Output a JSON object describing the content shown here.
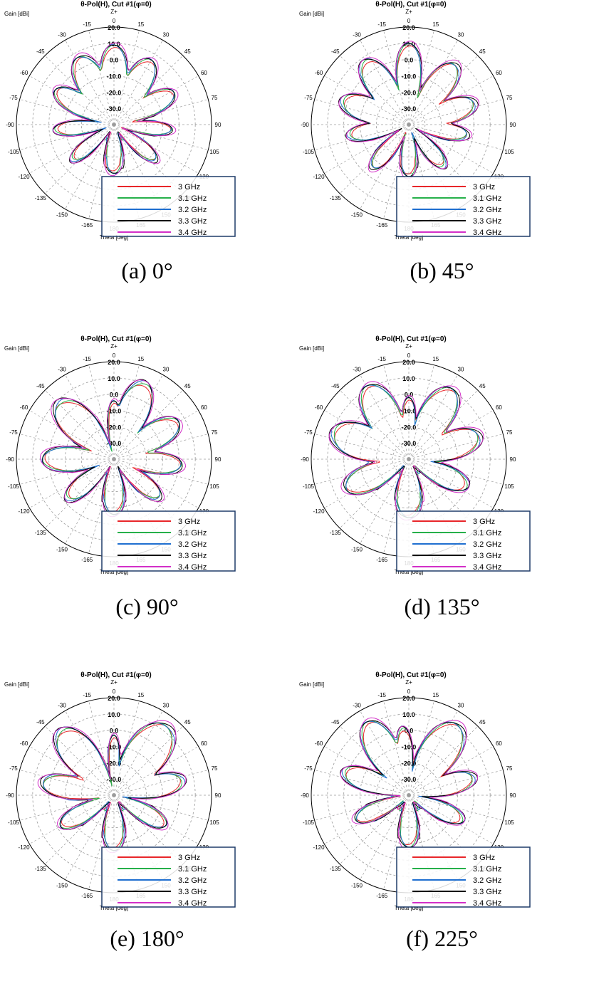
{
  "figure": {
    "panels": [
      {
        "caption_letter": "(a)",
        "caption_angle": "0°"
      },
      {
        "caption_letter": "(b)",
        "caption_angle": "45°"
      },
      {
        "caption_letter": "(c)",
        "caption_angle": "90°"
      },
      {
        "caption_letter": "(d)",
        "caption_angle": "135°"
      },
      {
        "caption_letter": "(e)",
        "caption_angle": "180°"
      },
      {
        "caption_letter": "(f)",
        "caption_angle": "225°"
      }
    ]
  },
  "chart_data": [
    {
      "type": "polar-line",
      "title": "θ-Pol(H), Cut #1(φ=0)",
      "radial_label": "Gain [dBi]",
      "angle_label": "Theta [deg]",
      "top_label": "Z+",
      "radial_ticks": [
        "20.0",
        "10.0",
        "0.0",
        "-10.0",
        "-20.0",
        "-30.0"
      ],
      "angle_ticks": [
        "0",
        "15",
        "30",
        "45",
        "60",
        "75",
        "90",
        "105",
        "120",
        "135",
        "150",
        "165",
        "180",
        "-165",
        "-150",
        "-135",
        "-120",
        "-105",
        "-90",
        "-75",
        "-60",
        "-45",
        "-30",
        "-15"
      ],
      "legend": [
        "3 GHz",
        "3.1 GHz",
        "3.2 GHz",
        "3.3 GHz",
        "3.4 GHz"
      ],
      "series_colors": [
        "#e8262a",
        "#26b04a",
        "#1f6fd0",
        "#000000",
        "#d32fc8"
      ],
      "lobes": [
        [
          0,
          22,
          9
        ],
        [
          -28,
          26,
          7
        ],
        [
          30,
          24,
          6
        ],
        [
          -60,
          22,
          2
        ],
        [
          62,
          22,
          2
        ],
        [
          -95,
          18,
          -3
        ],
        [
          95,
          18,
          -4
        ],
        [
          -130,
          20,
          -6
        ],
        [
          130,
          20,
          -6
        ],
        [
          180,
          30,
          -10
        ]
      ]
    },
    {
      "type": "polar-line",
      "title": "θ-Pol(H), Cut #1(φ=0)",
      "radial_label": "Gain [dBi]",
      "angle_label": "Theta [deg]",
      "top_label": "Z+",
      "radial_ticks": [
        "20.0",
        "10.0",
        "0.0",
        "-10.0",
        "-20.0",
        "-30.0"
      ],
      "angle_ticks": [
        "0",
        "15",
        "30",
        "45",
        "60",
        "75",
        "90",
        "105",
        "120",
        "135",
        "150",
        "165",
        "180",
        "-165",
        "-150",
        "-135",
        "-120",
        "-105",
        "-90",
        "-75",
        "-60",
        "-45",
        "-30",
        "-15"
      ],
      "legend": [
        "3 GHz",
        "3.1 GHz",
        "3.2 GHz",
        "3.3 GHz",
        "3.4 GHz"
      ],
      "series_colors": [
        "#e8262a",
        "#26b04a",
        "#1f6fd0",
        "#000000",
        "#d32fc8"
      ],
      "lobes": [
        [
          0,
          20,
          10
        ],
        [
          -35,
          24,
          8
        ],
        [
          38,
          24,
          7
        ],
        [
          -70,
          24,
          4
        ],
        [
          72,
          24,
          3
        ],
        [
          -100,
          20,
          -2
        ],
        [
          100,
          20,
          -3
        ],
        [
          -140,
          22,
          -5
        ],
        [
          140,
          22,
          -6
        ],
        [
          180,
          25,
          -8
        ]
      ]
    },
    {
      "type": "polar-line",
      "title": "θ-Pol(H), Cut #1(φ=0)",
      "radial_label": "Gain [dBi]",
      "angle_label": "Theta [deg]",
      "top_label": "Z+",
      "radial_ticks": [
        "20.0",
        "10.0",
        "0.0",
        "-10.0",
        "-20.0",
        "-30.0"
      ],
      "angle_ticks": [
        "0",
        "15",
        "30",
        "45",
        "60",
        "75",
        "90",
        "105",
        "120",
        "135",
        "150",
        "165",
        "180",
        "-165",
        "-150",
        "-135",
        "-120",
        "-105",
        "-90",
        "-75",
        "-60",
        "-45",
        "-30",
        "-15"
      ],
      "legend": [
        "3 GHz",
        "3.1 GHz",
        "3.2 GHz",
        "3.3 GHz",
        "3.4 GHz"
      ],
      "series_colors": [
        "#e8262a",
        "#26b04a",
        "#1f6fd0",
        "#000000",
        "#d32fc8"
      ],
      "lobes": [
        [
          0,
          16,
          -4
        ],
        [
          22,
          24,
          11
        ],
        [
          -45,
          28,
          9
        ],
        [
          60,
          24,
          6
        ],
        [
          -90,
          24,
          4
        ],
        [
          95,
          22,
          2
        ],
        [
          -130,
          22,
          -2
        ],
        [
          130,
          22,
          -3
        ],
        [
          180,
          30,
          -6
        ]
      ]
    },
    {
      "type": "polar-line",
      "title": "θ-Pol(H), Cut #1(φ=0)",
      "radial_label": "Gain [dBi]",
      "angle_label": "Theta [deg]",
      "top_label": "Z+",
      "radial_ticks": [
        "20.0",
        "10.0",
        "0.0",
        "-10.0",
        "-20.0",
        "-30.0"
      ],
      "angle_ticks": [
        "0",
        "15",
        "30",
        "45",
        "60",
        "75",
        "90",
        "105",
        "120",
        "135",
        "150",
        "165",
        "180",
        "-165",
        "-150",
        "-135",
        "-120",
        "-105",
        "-90",
        "-75",
        "-60",
        "-45",
        "-30",
        "-15"
      ],
      "legend": [
        "3 GHz",
        "3.1 GHz",
        "3.2 GHz",
        "3.3 GHz",
        "3.4 GHz"
      ],
      "series_colors": [
        "#e8262a",
        "#26b04a",
        "#1f6fd0",
        "#000000",
        "#d32fc8"
      ],
      "lobes": [
        [
          0,
          16,
          -2
        ],
        [
          -30,
          26,
          12
        ],
        [
          32,
          26,
          11
        ],
        [
          -70,
          28,
          10
        ],
        [
          72,
          26,
          6
        ],
        [
          -115,
          26,
          3
        ],
        [
          115,
          24,
          0
        ],
        [
          180,
          34,
          -4
        ]
      ]
    },
    {
      "type": "polar-line",
      "title": "θ-Pol(H), Cut #1(φ=0)",
      "radial_label": "Gain [dBi]",
      "angle_label": "Theta [deg]",
      "top_label": "Z+",
      "radial_ticks": [
        "20.0",
        "10.0",
        "0.0",
        "-10.0",
        "-20.0",
        "-30.0"
      ],
      "angle_ticks": [
        "0",
        "15",
        "30",
        "45",
        "60",
        "75",
        "90",
        "105",
        "120",
        "135",
        "150",
        "165",
        "180",
        "-165",
        "-150",
        "-135",
        "-120",
        "-105",
        "-90",
        "-75",
        "-60",
        "-45",
        "-30",
        "-15"
      ],
      "legend": [
        "3 GHz",
        "3.1 GHz",
        "3.2 GHz",
        "3.3 GHz",
        "3.4 GHz"
      ],
      "series_colors": [
        "#e8262a",
        "#26b04a",
        "#1f6fd0",
        "#000000",
        "#d32fc8"
      ],
      "lobes": [
        [
          0,
          14,
          -3
        ],
        [
          -40,
          26,
          12
        ],
        [
          38,
          30,
          14
        ],
        [
          -80,
          22,
          5
        ],
        [
          78,
          22,
          4
        ],
        [
          -120,
          22,
          -2
        ],
        [
          120,
          22,
          -3
        ],
        [
          180,
          30,
          -6
        ]
      ]
    },
    {
      "type": "polar-line",
      "title": "θ-Pol(H), Cut #1(φ=0)",
      "radial_label": "Gain [dBi]",
      "angle_label": "Theta [deg]",
      "top_label": "Z+",
      "radial_ticks": [
        "20.0",
        "10.0",
        "0.0",
        "-10.0",
        "-20.0",
        "-30.0"
      ],
      "angle_ticks": [
        "0",
        "15",
        "30",
        "45",
        "60",
        "75",
        "90",
        "105",
        "120",
        "135",
        "150",
        "165",
        "180",
        "-165",
        "-150",
        "-135",
        "-120",
        "-105",
        "-90",
        "-75",
        "-60",
        "-45",
        "-30",
        "-15"
      ],
      "legend": [
        "3 GHz",
        "3.1 GHz",
        "3.2 GHz",
        "3.3 GHz",
        "3.4 GHz"
      ],
      "series_colors": [
        "#e8262a",
        "#26b04a",
        "#1f6fd0",
        "#000000",
        "#d32fc8"
      ],
      "lobes": [
        [
          -5,
          16,
          2
        ],
        [
          -30,
          24,
          12
        ],
        [
          35,
          28,
          13
        ],
        [
          -70,
          22,
          3
        ],
        [
          75,
          22,
          2
        ],
        [
          -115,
          22,
          -4
        ],
        [
          115,
          22,
          -3
        ],
        [
          180,
          30,
          -8
        ]
      ]
    }
  ]
}
